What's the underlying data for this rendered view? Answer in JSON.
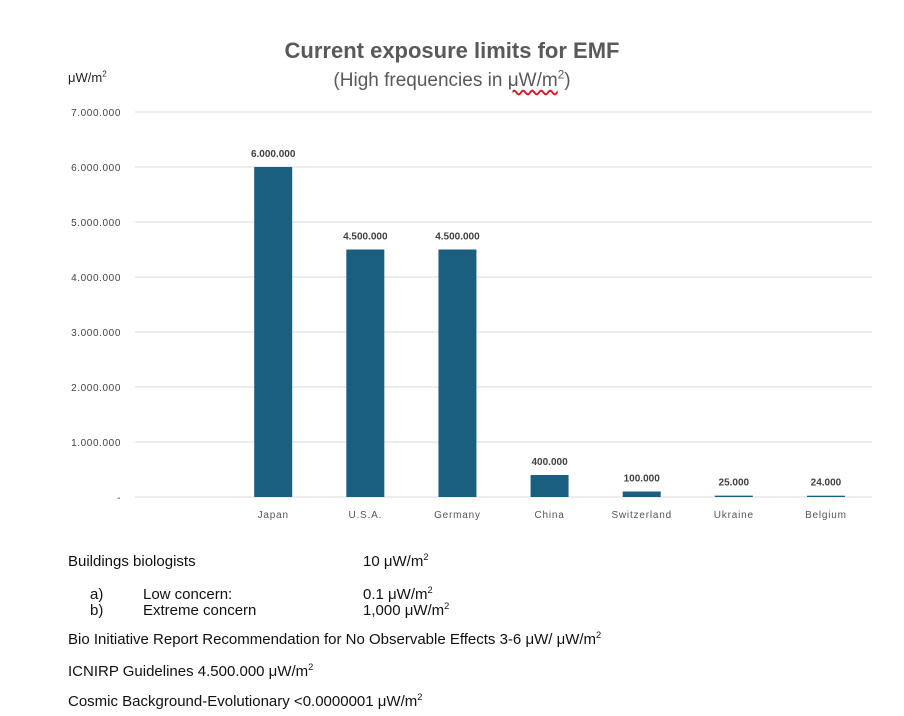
{
  "chart_data": {
    "type": "bar",
    "title": "Current exposure limits for EMF",
    "subtitle": {
      "prefix": "(High frequencies in ",
      "unit_main": "μW/m",
      "unit_exp": "2",
      "suffix": ")"
    },
    "y_unit": {
      "main": "μW/m",
      "exp": "2"
    },
    "categories": [
      "Japan",
      "U.S.A.",
      "Germany",
      "China",
      "Switzerland",
      "Ukraine",
      "Belgium"
    ],
    "values": [
      6000000,
      4500000,
      4500000,
      400000,
      100000,
      25000,
      24000
    ],
    "value_labels": [
      "6.000.000",
      "4.500.000",
      "4.500.000",
      "400.000",
      "100.000",
      "25.000",
      "24.000"
    ],
    "ylim": [
      0,
      7000000
    ],
    "yticks": [
      0,
      1000000,
      2000000,
      3000000,
      4000000,
      5000000,
      6000000,
      7000000
    ],
    "ytick_labels": [
      "-",
      "1.000.000",
      "2.000.000",
      "3.000.000",
      "4.000.000",
      "5.000.000",
      "6.000.000",
      "7.000.000"
    ],
    "grid": true,
    "bar_color": "#1b5f80"
  },
  "notes": {
    "building_biologists": {
      "label": "Buildings biologists",
      "value": "10 μW/m",
      "exp": "2"
    },
    "low_concern": {
      "marker": "a)",
      "label": "Low concern:",
      "value": "0.1 μW/m",
      "exp": "2"
    },
    "extreme_concern": {
      "marker": "b)",
      "label": "Extreme concern",
      "value": "1,000 μW/m",
      "exp": "2"
    },
    "bioinitiative": {
      "text": "Bio Initiative Report Recommendation for No Observable Effects 3-6 μW/ μW/m",
      "exp": "2"
    },
    "icnirp": {
      "text": "ICNIRP Guidelines 4.500.000 μW/m",
      "exp": "2"
    },
    "cosmic": {
      "text": "Cosmic Background-Evolutionary <0.0000001 μW/m",
      "exp": "2"
    }
  }
}
